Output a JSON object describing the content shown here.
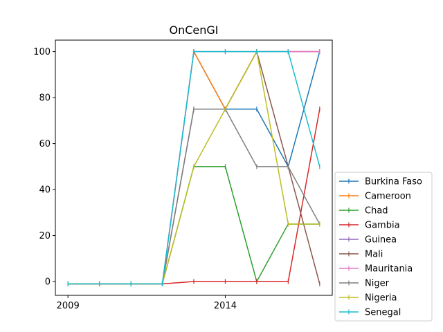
{
  "chart_data": {
    "type": "line",
    "title": "OnCenGI",
    "xlabel": "",
    "ylabel": "",
    "x": [
      2009,
      2010,
      2011,
      2012,
      2013,
      2014,
      2015,
      2016,
      2017
    ],
    "xticks": [
      2009,
      2014
    ],
    "yticks": [
      0,
      20,
      40,
      60,
      80,
      100
    ],
    "xlim": [
      2008.6,
      2017.4
    ],
    "ylim": [
      -6,
      105
    ],
    "grid": false,
    "legend_position": "lower-right-outside",
    "series": [
      {
        "name": "Burkina Faso",
        "color": "#1f77b4",
        "values": [
          -1,
          -1,
          -1,
          -1,
          100,
          75,
          75,
          50,
          100
        ]
      },
      {
        "name": "Cameroon",
        "color": "#ff7f0e",
        "values": [
          -1,
          -1,
          -1,
          -1,
          100,
          75,
          100,
          100,
          100
        ]
      },
      {
        "name": "Chad",
        "color": "#2ca02c",
        "values": [
          -1,
          -1,
          -1,
          -1,
          50,
          50,
          0,
          25,
          25
        ]
      },
      {
        "name": "Gambia",
        "color": "#d62728",
        "values": [
          -1,
          -1,
          -1,
          -1,
          0,
          0,
          0,
          0,
          75
        ]
      },
      {
        "name": "Guinea",
        "color": "#9467bd",
        "values": [
          -1,
          -1,
          -1,
          -1,
          100,
          100,
          100,
          100,
          100
        ]
      },
      {
        "name": "Mali",
        "color": "#8c564b",
        "values": [
          -1,
          -1,
          -1,
          -1,
          75,
          75,
          100,
          50,
          -1
        ]
      },
      {
        "name": "Mauritania",
        "color": "#e377c2",
        "values": [
          -1,
          -1,
          -1,
          -1,
          100,
          100,
          100,
          100,
          100
        ]
      },
      {
        "name": "Niger",
        "color": "#7f7f7f",
        "values": [
          -1,
          -1,
          -1,
          -1,
          75,
          75,
          50,
          50,
          25
        ]
      },
      {
        "name": "Nigeria",
        "color": "#bcbd22",
        "values": [
          -1,
          -1,
          -1,
          -1,
          50,
          75,
          100,
          25,
          25
        ]
      },
      {
        "name": "Senegal",
        "color": "#17becf",
        "values": [
          -1,
          -1,
          -1,
          -1,
          100,
          100,
          100,
          100,
          50
        ]
      }
    ]
  }
}
